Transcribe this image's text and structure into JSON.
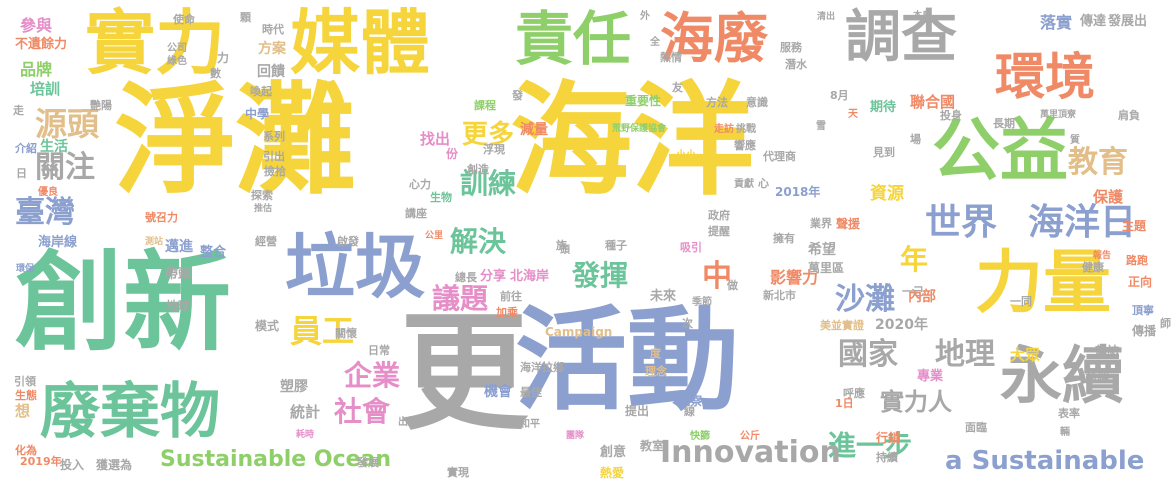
{
  "palette": {
    "yellow": "#f5d43c",
    "green": "#8fcf6a",
    "teal": "#6cc49a",
    "blue": "#8ca0cf",
    "orange": "#f08a66",
    "gray": "#a8a8a8",
    "tan": "#e2bf8a",
    "pink": "#e58ec8"
  },
  "words": [
    "淨灘",
    "海洋",
    "活動",
    "創新",
    "更",
    "垃圾",
    "媒體",
    "實力",
    "責任",
    "海廢",
    "調查",
    "環境",
    "公益",
    "力量",
    "廢棄物",
    "永續",
    "世界",
    "海洋日",
    "國家",
    "地理",
    "源頭",
    "關注",
    "臺灣",
    "教育",
    "更多",
    "訓練",
    "解決",
    "發揮",
    "議題",
    "沙灘",
    "員工",
    "企業",
    "社會",
    "中",
    "年",
    "實力人",
    "進一步",
    "Innovation",
    "a Sustainable",
    "Sustainable Ocean",
    "參與",
    "不遺餘力",
    "品牌",
    "培訓",
    "資源",
    "保護",
    "落實",
    "傳達",
    "發展出",
    "聯合國",
    "2020年",
    "2018年",
    "2019年",
    "Campaign",
    "影響力",
    "希望",
    "內部",
    "大眾",
    "雜誌",
    "專業",
    "塑膠",
    "統計",
    "機會",
    "最佳",
    "創意",
    "教室",
    "熱愛",
    "實現",
    "生活",
    "介紹",
    "海岸線",
    "主題",
    "健康",
    "期待",
    "重要性",
    "方法",
    "意識",
    "使命",
    "時代",
    "方案",
    "回饋",
    "系列",
    "中學",
    "艷陽",
    "找出",
    "課程",
    "減量",
    "荒野保護協會",
    "小小",
    "代理商",
    "貢獻",
    "萬里區",
    "擁有",
    "業界",
    "聲援",
    "政府",
    "提醒",
    "種子",
    "分享",
    "北海岸",
    "新北市",
    "美並實證",
    "前端",
    "傳播",
    "頂寧",
    "正向",
    "路跑",
    "海洋拉鄉",
    "觀察",
    "提出",
    "表率",
    "面臨",
    "呼應",
    "行銷",
    "持續",
    "團隊",
    "公斤",
    "快篩",
    "理念",
    "邁進",
    "帶頭",
    "經營",
    "整合",
    "地球",
    "模式",
    "日常",
    "關懷",
    "號召力",
    "推估",
    "探索",
    "撿拾",
    "引出",
    "心力",
    "創造",
    "浮現",
    "生物",
    "講座",
    "啟發",
    "總長",
    "前往",
    "加乘",
    "吸引",
    "未來",
    "做",
    "次",
    "度",
    "和平",
    "出爐",
    "耗時",
    "投入",
    "獲選為",
    "發展",
    "想",
    "生態",
    "引領",
    "化為",
    "優良",
    "環保",
    "測站",
    "公司",
    "綠色",
    "數",
    "喚起",
    "全",
    "熱情",
    "服務",
    "潛水",
    "本島",
    "清出",
    "外",
    "天",
    "投身",
    "長期",
    "萬里頂寮",
    "肩負",
    "見到",
    "一同",
    "響應",
    "挑戰",
    "走訪",
    "友",
    "8月",
    "1日",
    "一己",
    "季節",
    "族",
    "公里",
    "報告",
    "走",
    "日",
    "力",
    "份",
    "心",
    "線",
    "頭",
    "發",
    "場",
    "雪",
    "質",
    "輛",
    "師",
    "顆"
  ]
}
